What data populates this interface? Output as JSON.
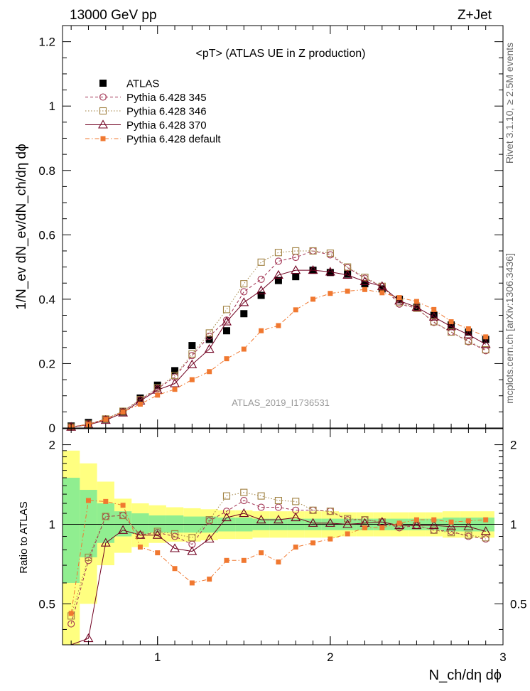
{
  "header": {
    "energy_label": "13000 GeV pp",
    "process_label": "Z+Jet"
  },
  "side_labels": {
    "rivet": "Rivet 3.1.10, ≥ 2.5M events",
    "mcplots": "mcplots.cern.ch [arXiv:1306.3436]"
  },
  "chart_data": {
    "type": "scatter",
    "title": "<pT>  (ATLAS UE in Z production)",
    "analysis_label": "ATLAS_2019_I1736531",
    "xlabel": "N_ch/dη dϕ",
    "ylabel": "1/N_ev dN_ev/dN_ch/dη dϕ",
    "ratio_ylabel": "Ratio to ATLAS",
    "xlim": [
      0.45,
      3.0
    ],
    "ylim": [
      0,
      1.25
    ],
    "ratio_ylim": [
      0.35,
      2.3
    ],
    "ratio_log": true,
    "x_ticks": [
      "1",
      "2",
      "3"
    ],
    "y_ticks": [
      "0",
      "0.2",
      "0.4",
      "0.6",
      "0.8",
      "1",
      "1.2"
    ],
    "ratio_ticks": [
      "0.5",
      "1",
      "2"
    ],
    "legend_position": "top-left",
    "x": [
      0.5,
      0.6,
      0.7,
      0.8,
      0.9,
      1.0,
      1.1,
      1.2,
      1.3,
      1.4,
      1.5,
      1.6,
      1.7,
      1.8,
      1.9,
      2.0,
      2.1,
      2.2,
      2.3,
      2.4,
      2.5,
      2.6,
      2.7,
      2.8,
      2.9
    ],
    "series": [
      {
        "name": "ATLAS",
        "color": "#000000",
        "marker": "filled-square",
        "line": "none",
        "values": [
          0.006,
          0.017,
          0.027,
          0.05,
          0.093,
          0.133,
          0.178,
          0.256,
          0.275,
          0.302,
          0.355,
          0.412,
          0.458,
          0.47,
          0.49,
          0.483,
          0.478,
          0.448,
          0.432,
          0.4,
          0.375,
          0.35,
          0.32,
          0.298,
          0.275
        ]
      },
      {
        "name": "Pythia 6.428 345",
        "color": "#a03050",
        "marker": "open-circle",
        "line": "dashed",
        "values": [
          0.003,
          0.012,
          0.028,
          0.052,
          0.088,
          0.122,
          0.158,
          0.225,
          0.285,
          0.335,
          0.423,
          0.462,
          0.518,
          0.53,
          0.55,
          0.538,
          0.498,
          0.465,
          0.44,
          0.385,
          0.372,
          0.328,
          0.298,
          0.268,
          0.24
        ]
      },
      {
        "name": "Pythia 6.428 346",
        "color": "#a08040",
        "marker": "open-square",
        "line": "dotted",
        "values": [
          0.003,
          0.012,
          0.028,
          0.052,
          0.088,
          0.125,
          0.163,
          0.23,
          0.295,
          0.368,
          0.448,
          0.515,
          0.545,
          0.55,
          0.55,
          0.543,
          0.5,
          0.468,
          0.44,
          0.39,
          0.372,
          0.33,
          0.298,
          0.27,
          0.243
        ]
      },
      {
        "name": "Pythia 6.428 370",
        "color": "#700020",
        "marker": "open-triangle",
        "line": "solid",
        "values": [
          0.003,
          0.01,
          0.024,
          0.047,
          0.084,
          0.118,
          0.138,
          0.197,
          0.245,
          0.33,
          0.39,
          0.427,
          0.475,
          0.49,
          0.49,
          0.485,
          0.475,
          0.455,
          0.44,
          0.395,
          0.375,
          0.345,
          0.315,
          0.29,
          0.26
        ]
      },
      {
        "name": "Pythia 6.428 default",
        "color": "#f07830",
        "marker": "filled-square-small",
        "line": "dashdot",
        "values": [
          0.003,
          0.011,
          0.027,
          0.05,
          0.074,
          0.102,
          0.12,
          0.15,
          0.175,
          0.215,
          0.245,
          0.302,
          0.318,
          0.367,
          0.4,
          0.418,
          0.425,
          0.43,
          0.42,
          0.405,
          0.393,
          0.368,
          0.33,
          0.308,
          0.283
        ]
      }
    ],
    "ratio_series": [
      {
        "name": "Pythia 6.428 345",
        "values": [
          0.42,
          0.73,
          1.07,
          1.08,
          0.91,
          0.93,
          0.9,
          0.84,
          1.03,
          1.12,
          1.23,
          1.16,
          1.16,
          1.13,
          1.13,
          1.12,
          1.04,
          1.04,
          1.02,
          0.97,
          0.99,
          0.95,
          0.94,
          0.9,
          0.88
        ]
      },
      {
        "name": "Pythia 6.428 346",
        "values": [
          0.45,
          0.75,
          1.07,
          1.08,
          0.91,
          0.94,
          0.92,
          0.89,
          1.04,
          1.28,
          1.32,
          1.28,
          1.23,
          1.22,
          1.13,
          1.12,
          1.05,
          1.04,
          1.02,
          0.98,
          0.99,
          0.95,
          0.93,
          0.91,
          0.89
        ]
      },
      {
        "name": "Pythia 6.428 370",
        "values": [
          0.33,
          0.37,
          0.85,
          0.95,
          0.91,
          0.91,
          0.81,
          0.79,
          0.88,
          1.06,
          1.1,
          1.04,
          1.04,
          1.06,
          1.01,
          1.01,
          1.0,
          1.01,
          1.02,
          0.99,
          0.99,
          0.99,
          0.98,
          0.98,
          0.94
        ]
      },
      {
        "name": "Pythia 6.428 default",
        "values": [
          0.46,
          1.23,
          1.22,
          1.18,
          0.82,
          0.78,
          0.68,
          0.6,
          0.62,
          0.73,
          0.73,
          0.78,
          0.72,
          0.82,
          0.85,
          0.88,
          0.92,
          0.97,
          0.97,
          1.01,
          1.04,
          1.04,
          1.02,
          1.03,
          1.04
        ]
      }
    ],
    "ratio_bands": {
      "band_edges": [
        0.45,
        0.55,
        0.65,
        0.75,
        0.85,
        0.95,
        1.05,
        1.15,
        1.25,
        1.35,
        1.45,
        1.55,
        1.65,
        1.75,
        1.85,
        1.95,
        2.05,
        2.15,
        2.25,
        2.35,
        2.45,
        2.55,
        2.65,
        2.75,
        2.85,
        2.95
      ],
      "inner": [
        [
          0.6,
          1.5
        ],
        [
          0.75,
          1.35
        ],
        [
          0.85,
          1.2
        ],
        [
          0.9,
          1.12
        ],
        [
          0.92,
          1.1
        ],
        [
          0.93,
          1.08
        ],
        [
          0.93,
          1.08
        ],
        [
          0.93,
          1.07
        ],
        [
          0.93,
          1.07
        ],
        [
          0.94,
          1.06
        ],
        [
          0.94,
          1.06
        ],
        [
          0.95,
          1.05
        ],
        [
          0.95,
          1.05
        ],
        [
          0.95,
          1.05
        ],
        [
          0.95,
          1.05
        ],
        [
          0.95,
          1.05
        ],
        [
          0.95,
          1.05
        ],
        [
          0.95,
          1.05
        ],
        [
          0.95,
          1.05
        ],
        [
          0.95,
          1.05
        ],
        [
          0.95,
          1.05
        ],
        [
          0.95,
          1.05
        ],
        [
          0.94,
          1.06
        ],
        [
          0.94,
          1.06
        ],
        [
          0.94,
          1.06
        ]
      ],
      "outer": [
        [
          0.35,
          1.9
        ],
        [
          0.5,
          1.7
        ],
        [
          0.7,
          1.45
        ],
        [
          0.78,
          1.25
        ],
        [
          0.82,
          1.2
        ],
        [
          0.85,
          1.18
        ],
        [
          0.86,
          1.16
        ],
        [
          0.86,
          1.15
        ],
        [
          0.87,
          1.14
        ],
        [
          0.88,
          1.13
        ],
        [
          0.88,
          1.13
        ],
        [
          0.89,
          1.12
        ],
        [
          0.89,
          1.12
        ],
        [
          0.89,
          1.12
        ],
        [
          0.89,
          1.12
        ],
        [
          0.89,
          1.12
        ],
        [
          0.9,
          1.11
        ],
        [
          0.9,
          1.11
        ],
        [
          0.9,
          1.11
        ],
        [
          0.9,
          1.11
        ],
        [
          0.9,
          1.11
        ],
        [
          0.9,
          1.11
        ],
        [
          0.89,
          1.12
        ],
        [
          0.89,
          1.12
        ],
        [
          0.89,
          1.12
        ]
      ]
    },
    "colors": {
      "inner_band": "#90ee90",
      "outer_band": "#ffff80"
    }
  }
}
